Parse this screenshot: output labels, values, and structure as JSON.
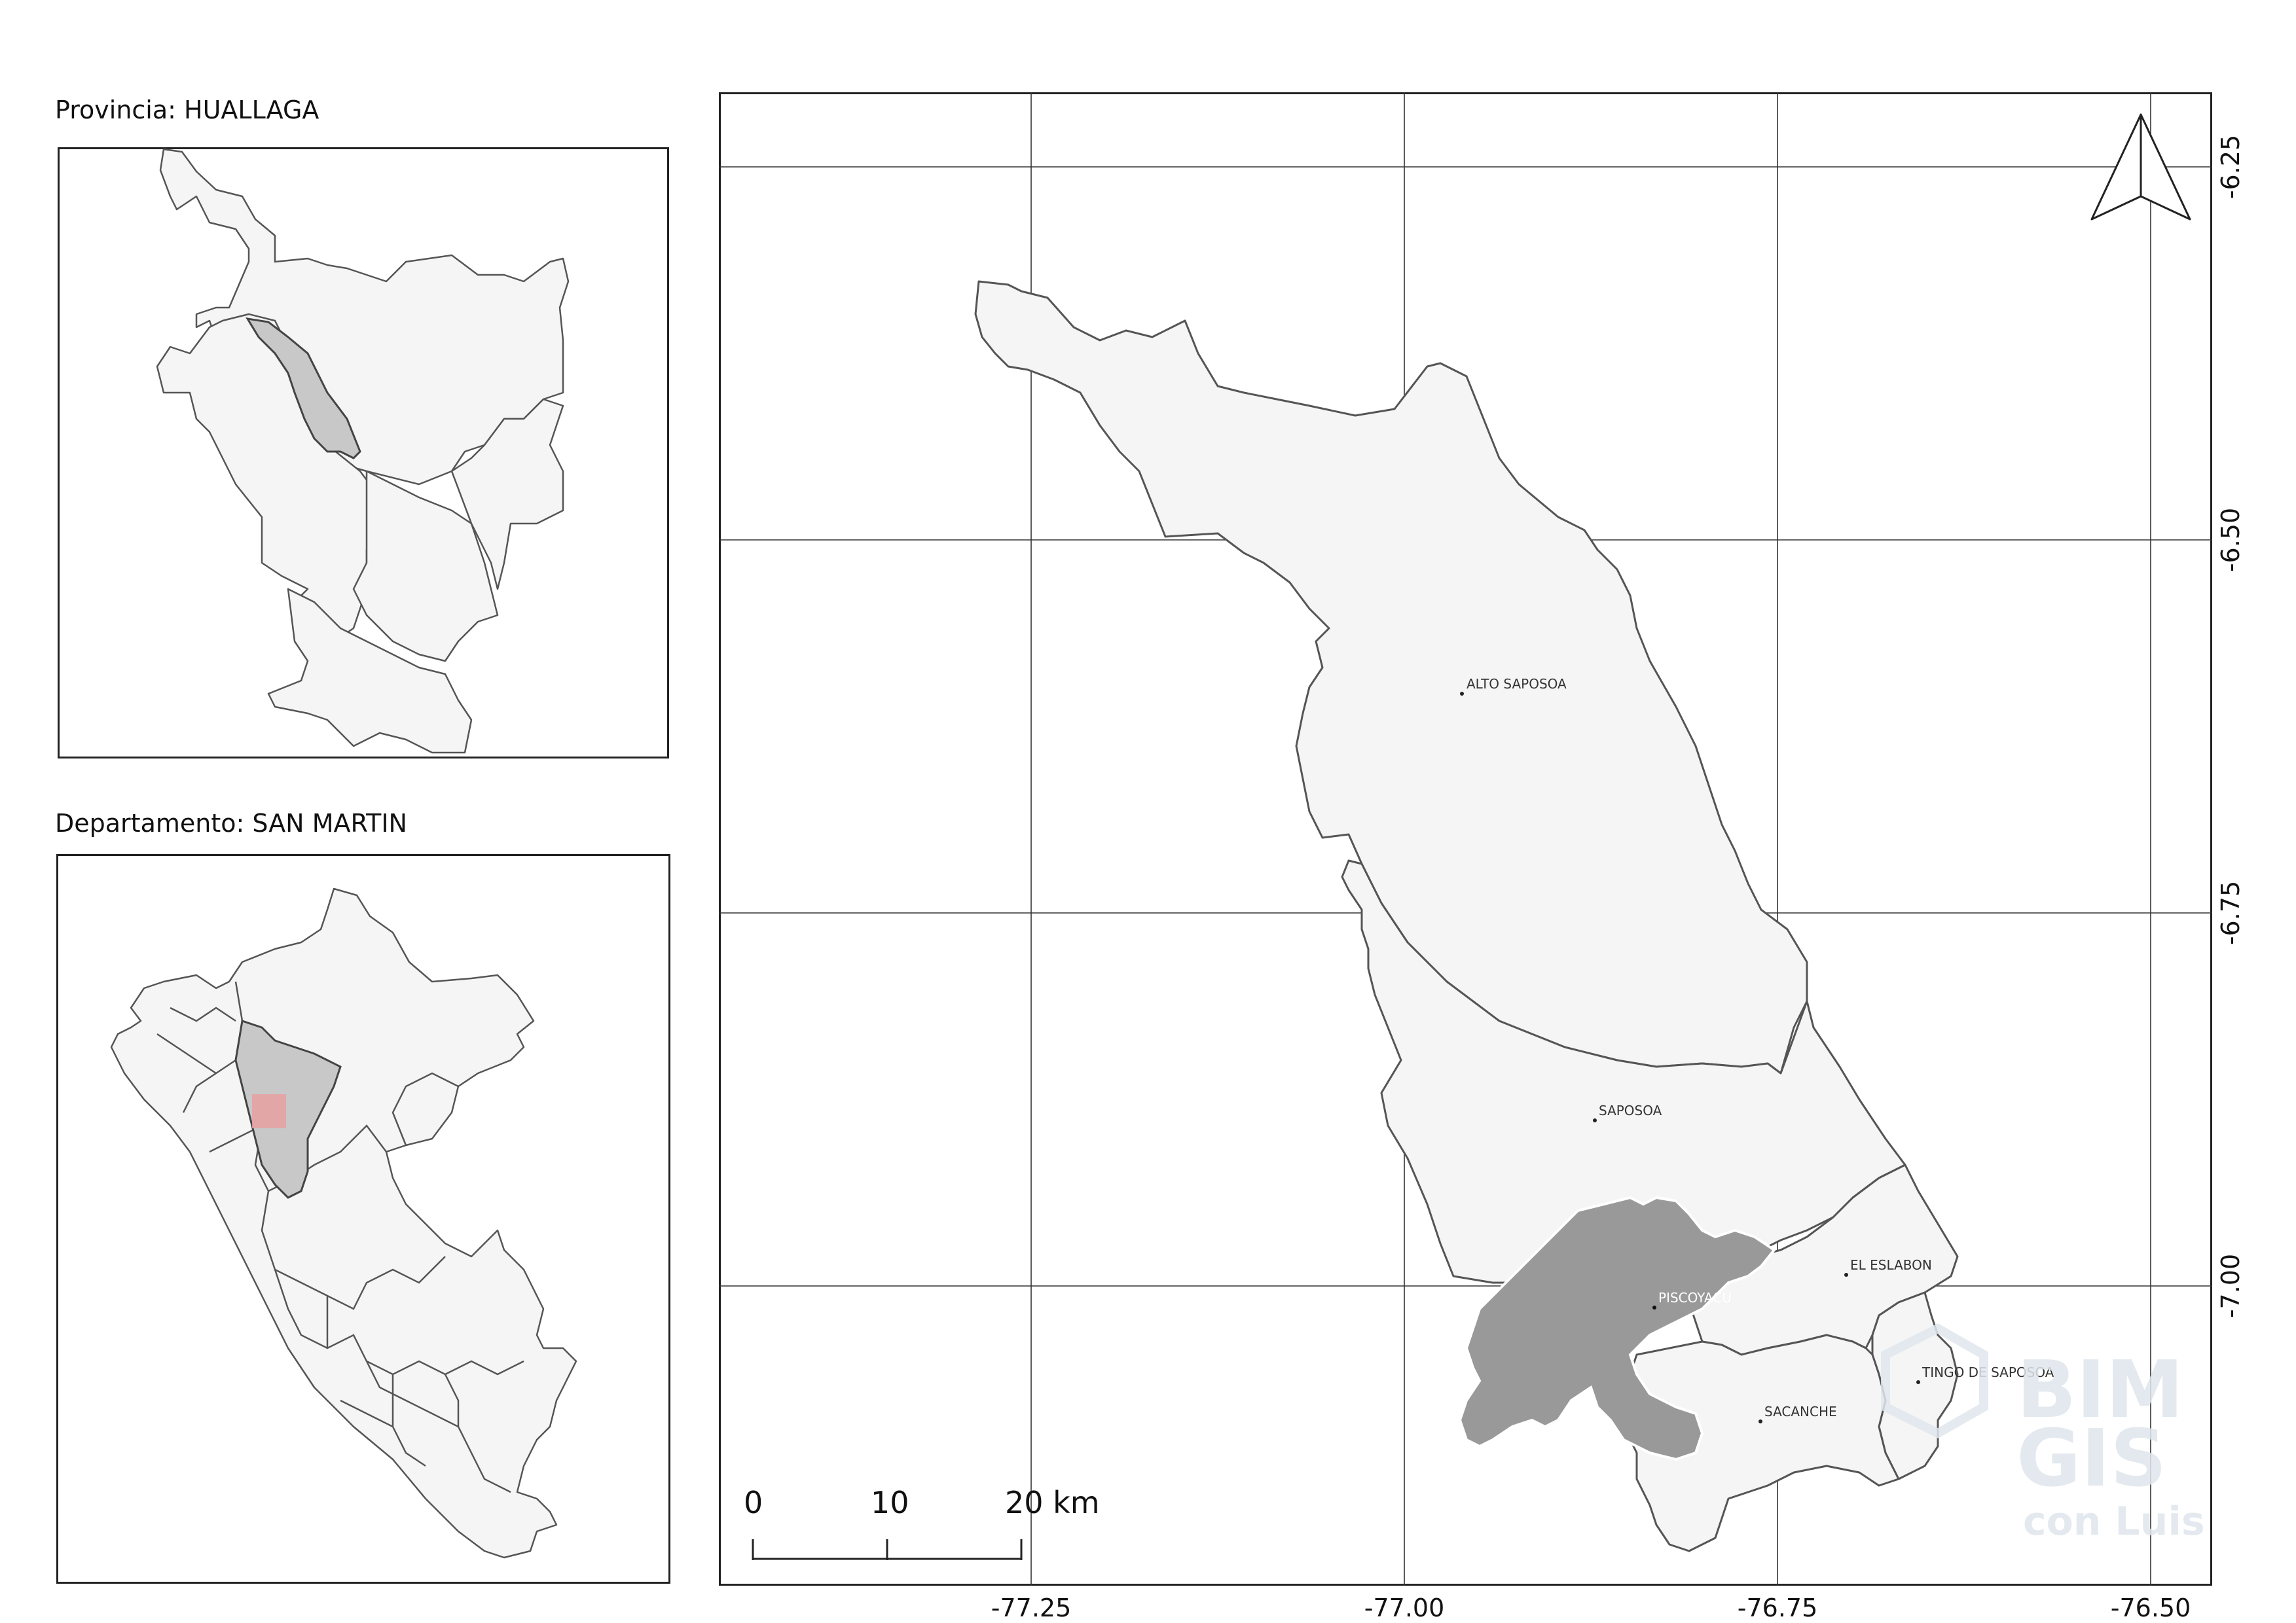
{
  "insets": {
    "province_title": "Provincia: HUALLAGA",
    "department_title": "Departamento: SAN MARTIN"
  },
  "map": {
    "x_ticks": [
      "-77.25",
      "-77.00",
      "-76.75",
      "-76.50"
    ],
    "y_ticks": [
      "-6.25",
      "-6.50",
      "-6.75",
      "-7.00"
    ],
    "places": {
      "alto_saposoa": "ALTO SAPOSOA",
      "saposoa": "SAPOSOA",
      "el_eslabon": "EL ESLABON",
      "piscoyacu": "PISCOYACU",
      "tingo_de_saposoa": "TINGO DE SAPOSOA",
      "sacanche": "SACANCHE"
    },
    "scale_bar": {
      "labels": [
        "0",
        "10",
        "20 km"
      ]
    },
    "watermark": {
      "line1": "BIM",
      "line2": "GIS",
      "line3": "con Luis"
    }
  },
  "colors": {
    "district_fill": "#f5f5f5",
    "highlight_fill": "#c8c8c8",
    "selected_fill": "#999999",
    "locator_box": "#e8a0a0"
  },
  "icons": {
    "north_arrow": "north-arrow-icon"
  }
}
